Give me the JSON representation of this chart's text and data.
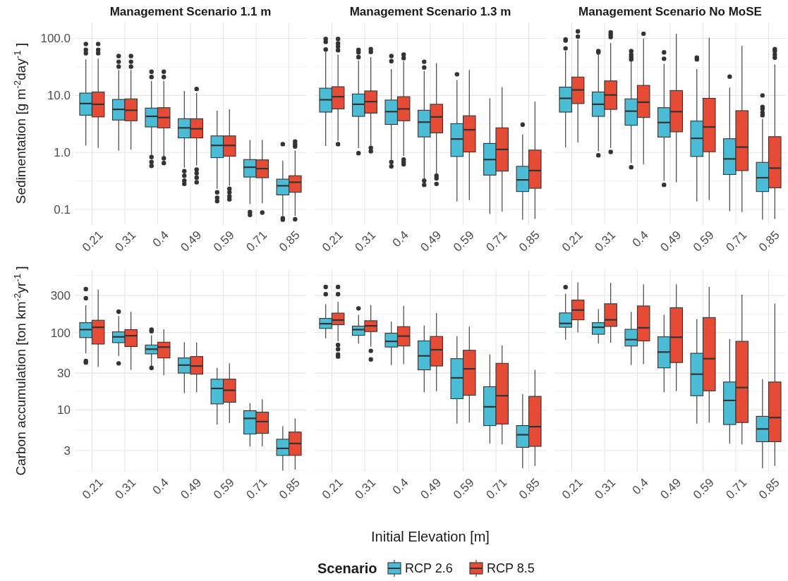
{
  "chart_data": [
    {
      "type": "box",
      "title": "Management Scenario 1.1 m",
      "ylabel": "Sedimentation [g m$^{-2}$day$^{-1}$ ]",
      "categories": [
        "0.21",
        "0.31",
        "0.4",
        "0.49",
        "0.59",
        "0.71",
        "0.85"
      ],
      "log": true,
      "grid": true,
      "ylim": [
        0.055,
        190
      ],
      "yticks": [
        {
          "value": 0.1,
          "label": "0.1"
        },
        {
          "value": 1,
          "label": "1.0"
        },
        {
          "value": 10,
          "label": "10.0"
        },
        {
          "value": 100,
          "label": "100.0"
        }
      ],
      "series": [
        {
          "color": "#4bbcd6",
          "boxes": [
            {
              "low": 1.33,
              "q1": 4.5,
              "median": 7.2,
              "q3": 11,
              "high": 43,
              "outliers": [
                55,
                63,
                80
              ]
            },
            {
              "low": 1.07,
              "q1": 3.7,
              "median": 5.7,
              "q3": 8.5,
              "high": 28,
              "outliers": [
                32,
                39,
                49
              ]
            },
            {
              "low": 0.91,
              "q1": 2.8,
              "median": 4.3,
              "q3": 6.0,
              "high": 18,
              "outliers": [
                0.58,
                0.68,
                0.83,
                21,
                26
              ]
            },
            {
              "low": 0.54,
              "q1": 1.8,
              "median": 2.7,
              "q3": 3.9,
              "high": 12,
              "outliers": [
                0.28,
                0.32,
                0.39,
                0.47
              ]
            },
            {
              "low": 0.23,
              "q1": 0.81,
              "median": 1.33,
              "q3": 1.95,
              "high": 5.4,
              "outliers": [
                0.14,
                0.16,
                0.2
              ]
            },
            {
              "low": 0.126,
              "q1": 0.37,
              "median": 0.55,
              "q3": 0.75,
              "high": 1.64,
              "outliers": [
                0.08,
                0.09
              ]
            },
            {
              "low": 0.078,
              "q1": 0.18,
              "median": 0.26,
              "q3": 0.34,
              "high": 0.72,
              "outliers": [
                0.066,
                0.07,
                1.4
              ]
            }
          ]
        },
        {
          "color": "#e64b35",
          "boxes": [
            {
              "low": 1.2,
              "q1": 4.2,
              "median": 7.0,
              "q3": 11.5,
              "high": 44,
              "outliers": [
                55,
                63,
                80
              ]
            },
            {
              "low": 1.12,
              "q1": 3.6,
              "median": 5.5,
              "q3": 8.7,
              "high": 28,
              "outliers": [
                32,
                39,
                49
              ]
            },
            {
              "low": 0.83,
              "q1": 2.7,
              "median": 4.1,
              "q3": 6.1,
              "high": 18,
              "outliers": [
                0.65,
                0.79,
                21,
                26
              ]
            },
            {
              "low": 0.59,
              "q1": 1.8,
              "median": 2.6,
              "q3": 3.9,
              "high": 11,
              "outliers": [
                0.3,
                0.36,
                0.43,
                0.5,
                13
              ]
            },
            {
              "low": 0.26,
              "q1": 0.86,
              "median": 1.33,
              "q3": 1.95,
              "high": 5.7,
              "outliers": [
                0.15,
                0.17,
                0.2,
                0.23
              ]
            },
            {
              "low": 0.128,
              "q1": 0.36,
              "median": 0.52,
              "q3": 0.74,
              "high": 1.65,
              "outliers": [
                0.088
              ]
            },
            {
              "low": 0.077,
              "q1": 0.2,
              "median": 0.3,
              "q3": 0.39,
              "high": 1.08,
              "outliers": [
                0.067,
                1.27,
                1.4,
                1.56
              ]
            }
          ]
        }
      ]
    },
    {
      "type": "box",
      "title": "Management Scenario 1.3 m",
      "categories": [
        "0.21",
        "0.31",
        "0.4",
        "0.49",
        "0.59",
        "0.71",
        "0.85"
      ],
      "log": true,
      "grid": true,
      "tick_labels": "x",
      "ylim": [
        0.055,
        190
      ],
      "yticks": [
        0.1,
        1,
        10,
        100
      ],
      "series": [
        {
          "color": "#4bbcd6",
          "boxes": [
            {
              "low": 1.3,
              "q1": 5.1,
              "median": 8.4,
              "q3": 13.4,
              "high": 58,
              "outliers": [
                64,
                87,
                98
              ]
            },
            {
              "low": 1.2,
              "q1": 4.3,
              "median": 7.0,
              "q3": 10.6,
              "high": 41,
              "outliers": [
                0.97,
                47,
                57,
                63
              ]
            },
            {
              "low": 0.75,
              "q1": 3.1,
              "median": 5.2,
              "q3": 8.3,
              "high": 29,
              "outliers": [
                0.57,
                0.68,
                40,
                49
              ]
            },
            {
              "low": 0.35,
              "q1": 1.87,
              "median": 3.4,
              "q3": 5.5,
              "high": 27,
              "outliers": [
                0.27,
                0.32,
                31,
                39
              ]
            },
            {
              "low": 0.138,
              "q1": 0.85,
              "median": 1.72,
              "q3": 3.2,
              "high": 18.6,
              "outliers": [
                23.5
              ]
            },
            {
              "low": 0.083,
              "q1": 0.4,
              "median": 0.75,
              "q3": 1.44,
              "high": 8.9
            },
            {
              "low": 0.066,
              "q1": 0.206,
              "median": 0.33,
              "q3": 0.57,
              "high": 2.06,
              "outliers": [
                3.07
              ]
            }
          ]
        },
        {
          "color": "#e64b35",
          "boxes": [
            {
              "low": 1.6,
              "q1": 5.8,
              "median": 9.5,
              "q3": 14.2,
              "high": 52,
              "outliers": [
                1.4,
                62,
                72,
                82,
                98
              ]
            },
            {
              "low": 1.33,
              "q1": 4.9,
              "median": 7.8,
              "q3": 12,
              "high": 47,
              "outliers": [
                1.05,
                1.2,
                58,
                65
              ]
            },
            {
              "low": 0.87,
              "q1": 3.6,
              "median": 5.8,
              "q3": 9.5,
              "high": 40,
              "outliers": [
                0.62,
                0.68,
                0.75,
                45,
                52
              ]
            },
            {
              "low": 0.42,
              "q1": 2.2,
              "median": 4.2,
              "q3": 7.0,
              "high": 37,
              "outliers": [
                0.28,
                0.35,
                0.39
              ]
            },
            {
              "low": 0.146,
              "q1": 1.02,
              "median": 2.5,
              "q3": 4.4,
              "high": 28
            },
            {
              "low": 0.091,
              "q1": 0.47,
              "median": 1.13,
              "q3": 2.7,
              "high": 14
            },
            {
              "low": 0.068,
              "q1": 0.235,
              "median": 0.48,
              "q3": 1.1,
              "high": 7.8
            }
          ]
        }
      ]
    },
    {
      "type": "box",
      "title": "Management Scenario No MoSE",
      "categories": [
        "0.21",
        "0.31",
        "0.4",
        "0.49",
        "0.59",
        "0.71",
        "0.85"
      ],
      "log": true,
      "grid": true,
      "tick_labels": "x",
      "ylim": [
        0.055,
        190
      ],
      "yticks": [
        0.1,
        1,
        10,
        100
      ],
      "series": [
        {
          "color": "#4bbcd6",
          "boxes": [
            {
              "low": 1.23,
              "q1": 5.1,
              "median": 8.9,
              "q3": 14,
              "high": 60,
              "outliers": [
                67,
                92,
                96
              ]
            },
            {
              "low": 1.05,
              "q1": 4.3,
              "median": 7.0,
              "q3": 11.5,
              "high": 54,
              "outliers": [
                0.89,
                57,
                60
              ]
            },
            {
              "low": 0.65,
              "q1": 3.0,
              "median": 5.3,
              "q3": 8.7,
              "high": 40,
              "outliers": [
                0.55,
                43,
                47,
                52,
                60
              ]
            },
            {
              "low": 0.32,
              "q1": 1.86,
              "median": 3.35,
              "q3": 6.1,
              "high": 36,
              "outliers": [
                0.27,
                44,
                57
              ]
            },
            {
              "low": 0.138,
              "q1": 0.85,
              "median": 1.77,
              "q3": 3.55,
              "high": 29,
              "outliers": [
                43,
                46
              ]
            },
            {
              "low": 0.093,
              "q1": 0.41,
              "median": 0.77,
              "q3": 1.74,
              "high": 13.7,
              "outliers": [
                21.4
              ]
            },
            {
              "low": 0.066,
              "q1": 0.206,
              "median": 0.36,
              "q3": 0.67,
              "high": 3.9,
              "outliers": [
                4.5,
                5.0,
                5.8,
                6.3,
                10
              ]
            }
          ]
        },
        {
          "color": "#e64b35",
          "boxes": [
            {
              "low": 1.5,
              "q1": 7.2,
              "median": 12.5,
              "q3": 21,
              "high": 96,
              "outliers": [
                108,
                133
              ]
            },
            {
              "low": 1.2,
              "q1": 5.7,
              "median": 10.2,
              "q3": 18,
              "high": 83,
              "outliers": [
                1.02,
                106,
                116,
                128
              ]
            },
            {
              "low": 0.62,
              "q1": 4.1,
              "median": 7.6,
              "q3": 15,
              "high": 100,
              "outliers": [
                121
              ]
            },
            {
              "low": 0.3,
              "q1": 2.3,
              "median": 5.2,
              "q3": 12.2,
              "high": 121
            },
            {
              "low": 0.146,
              "q1": 1.03,
              "median": 2.8,
              "q3": 8.9,
              "high": 103
            },
            {
              "low": 0.09,
              "q1": 0.48,
              "median": 1.24,
              "q3": 5.4,
              "high": 74
            },
            {
              "low": 0.068,
              "q1": 0.24,
              "median": 0.53,
              "q3": 1.89,
              "high": 35,
              "outliers": [
                46,
                52,
                60,
                65
              ]
            }
          ]
        }
      ]
    },
    {
      "type": "box",
      "ylabel": "Carbon accumulation [ton km$^{-2}$yr$^{-1}$ ]",
      "categories": [
        "0.21",
        "0.31",
        "0.4",
        "0.49",
        "0.59",
        "0.71",
        "0.85"
      ],
      "log": true,
      "grid": true,
      "ylim": [
        1.6,
        640
      ],
      "yticks": [
        3,
        10,
        30,
        100,
        300
      ],
      "series": [
        {
          "color": "#4bbcd6",
          "boxes": [
            {
              "low": 54,
              "q1": 86,
              "median": 109,
              "q3": 134,
              "high": 224,
              "outliers": [
                41,
                43,
                277,
                363
              ]
            },
            {
              "low": 50,
              "q1": 74,
              "median": 88,
              "q3": 102,
              "high": 163,
              "outliers": [
                40,
                186
              ]
            },
            {
              "low": 37,
              "q1": 53,
              "median": 61,
              "q3": 69,
              "high": 92,
              "outliers": [
                35,
                104,
                109
              ]
            },
            {
              "low": 16.5,
              "q1": 30,
              "median": 38,
              "q3": 47,
              "high": 75
            },
            {
              "low": 6.5,
              "q1": 12,
              "median": 19,
              "q3": 25,
              "high": 35
            },
            {
              "low": 3.4,
              "q1": 4.9,
              "median": 7.8,
              "q3": 9.8,
              "high": 12.3
            },
            {
              "low": 1.65,
              "q1": 2.6,
              "median": 3.2,
              "q3": 4.2,
              "high": 6.2
            }
          ]
        },
        {
          "color": "#e64b35",
          "boxes": [
            {
              "low": 36,
              "q1": 71,
              "median": 117,
              "q3": 144,
              "high": 358
            },
            {
              "low": 33,
              "q1": 66,
              "median": 91,
              "q3": 109,
              "high": 185
            },
            {
              "low": 28,
              "q1": 47,
              "median": 65,
              "q3": 75,
              "high": 110
            },
            {
              "low": 17,
              "q1": 29,
              "median": 37,
              "q3": 49,
              "high": 74
            },
            {
              "low": 6.8,
              "q1": 12.6,
              "median": 18,
              "q3": 25,
              "high": 40
            },
            {
              "low": 3.4,
              "q1": 5.0,
              "median": 7.1,
              "q3": 9.4,
              "high": 13.8
            },
            {
              "low": 1.7,
              "q1": 2.6,
              "median": 3.7,
              "q3": 5.2,
              "high": 7.8
            }
          ]
        }
      ]
    },
    {
      "type": "box",
      "xlabel": "Initial Elevation [m]",
      "legend_title": "Scenario",
      "legend": "bottom",
      "categories": [
        "0.21",
        "0.31",
        "0.4",
        "0.49",
        "0.59",
        "0.71",
        "0.85"
      ],
      "log": true,
      "grid": true,
      "tick_labels": "x",
      "ylim": [
        1.6,
        640
      ],
      "yticks": [
        3,
        10,
        30,
        100,
        300
      ],
      "series": [
        {
          "name": "RCP 2.6",
          "color": "#4bbcd6",
          "boxes": [
            {
              "low": 84,
              "q1": 113,
              "median": 130,
              "q3": 152,
              "high": 232,
              "outliers": [
                312,
                387
              ]
            },
            {
              "low": 72,
              "q1": 92,
              "median": 109,
              "q3": 121,
              "high": 168,
              "outliers": [
                205
              ]
            },
            {
              "low": 38,
              "q1": 65,
              "median": 77,
              "q3": 98,
              "high": 139
            },
            {
              "low": 17,
              "q1": 33,
              "median": 50,
              "q3": 78,
              "high": 123
            },
            {
              "low": 6.7,
              "q1": 14,
              "median": 26,
              "q3": 46,
              "high": 90
            },
            {
              "low": 3.7,
              "q1": 6.3,
              "median": 11,
              "q3": 20,
              "high": 52
            },
            {
              "low": 1.77,
              "q1": 3.3,
              "median": 4.8,
              "q3": 6.3,
              "high": 16
            }
          ]
        },
        {
          "name": "RCP 8.5",
          "color": "#e64b35",
          "boxes": [
            {
              "low": 77,
              "q1": 126,
              "median": 145,
              "q3": 178,
              "high": 249,
              "outliers": [
                49,
                52,
                61,
                69,
                312,
                387
              ]
            },
            {
              "low": 66,
              "q1": 103,
              "median": 122,
              "q3": 142,
              "high": 227,
              "outliers": [
                45,
                58
              ]
            },
            {
              "low": 39,
              "q1": 67,
              "median": 90,
              "q3": 119,
              "high": 221
            },
            {
              "low": 17.5,
              "q1": 37,
              "median": 60,
              "q3": 89,
              "high": 178
            },
            {
              "low": 6.9,
              "q1": 15.5,
              "median": 34,
              "q3": 59,
              "high": 119
            },
            {
              "low": 3.6,
              "q1": 6.6,
              "median": 15.3,
              "q3": 40,
              "high": 68
            },
            {
              "low": 1.9,
              "q1": 3.4,
              "median": 6.1,
              "q3": 15,
              "high": 33
            }
          ]
        }
      ]
    },
    {
      "type": "box",
      "categories": [
        "0.21",
        "0.31",
        "0.4",
        "0.49",
        "0.59",
        "0.71",
        "0.85"
      ],
      "log": true,
      "grid": true,
      "tick_labels": "x",
      "ylim": [
        1.6,
        640
      ],
      "yticks": [
        3,
        10,
        30,
        100,
        300
      ],
      "series": [
        {
          "color": "#4bbcd6",
          "boxes": [
            {
              "low": 81,
              "q1": 117,
              "median": 131,
              "q3": 179,
              "high": 318,
              "outliers": [
                385
              ]
            },
            {
              "low": 72,
              "q1": 95,
              "median": 117,
              "q3": 134,
              "high": 200
            },
            {
              "low": 38,
              "q1": 67,
              "median": 81,
              "q3": 110,
              "high": 185
            },
            {
              "low": 17,
              "q1": 35,
              "median": 56,
              "q3": 88,
              "high": 169
            },
            {
              "low": 6.7,
              "q1": 15.3,
              "median": 29,
              "q3": 54,
              "high": 149
            },
            {
              "low": 3.7,
              "q1": 6.5,
              "median": 13.3,
              "q3": 23,
              "high": 82
            },
            {
              "low": 1.77,
              "q1": 3.9,
              "median": 5.7,
              "q3": 8.3,
              "high": 25
            }
          ]
        },
        {
          "color": "#e64b35",
          "boxes": [
            {
              "low": 100,
              "q1": 146,
              "median": 195,
              "q3": 262,
              "high": 443
            },
            {
              "low": 74,
              "q1": 120,
              "median": 146,
              "q3": 235,
              "high": 437
            },
            {
              "low": 39,
              "q1": 78,
              "median": 115,
              "q3": 220,
              "high": 419
            },
            {
              "low": 17.5,
              "q1": 41,
              "median": 87,
              "q3": 209,
              "high": 419
            },
            {
              "low": 6.9,
              "q1": 17.7,
              "median": 46,
              "q3": 156,
              "high": 387
            },
            {
              "low": 3.6,
              "q1": 6.9,
              "median": 19.5,
              "q3": 77,
              "high": 307
            },
            {
              "low": 1.9,
              "q1": 3.9,
              "median": 8.0,
              "q3": 23,
              "high": 237
            }
          ]
        }
      ]
    }
  ]
}
